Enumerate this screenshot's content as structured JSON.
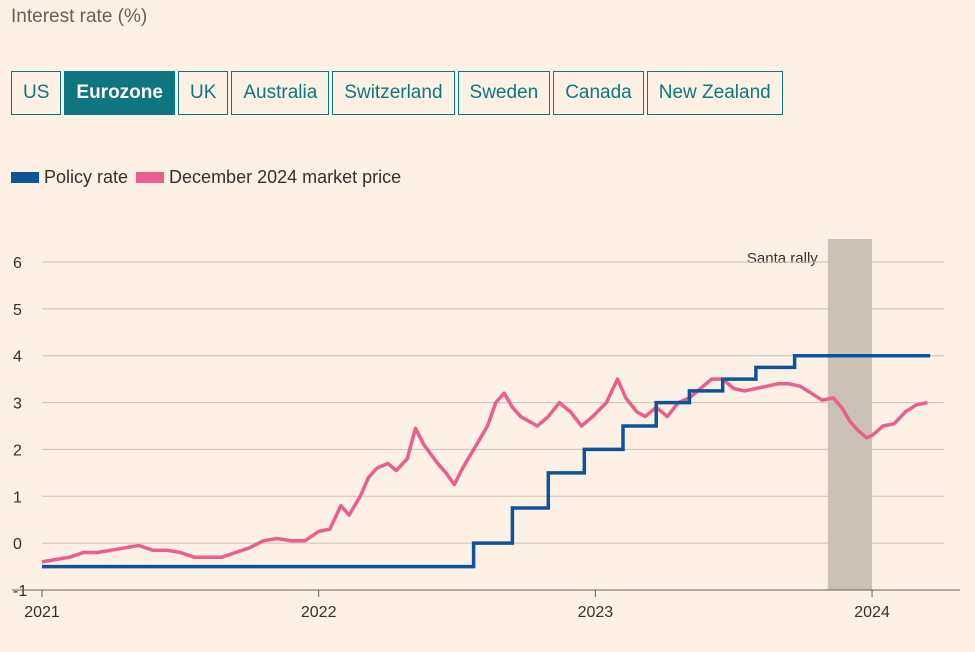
{
  "title": "Interest rate (%)",
  "tabs": [
    {
      "label": "US",
      "active": false
    },
    {
      "label": "Eurozone",
      "active": true
    },
    {
      "label": "UK",
      "active": false
    },
    {
      "label": "Australia",
      "active": false
    },
    {
      "label": "Switzerland",
      "active": false
    },
    {
      "label": "Sweden",
      "active": false
    },
    {
      "label": "Canada",
      "active": false
    },
    {
      "label": "New Zealand",
      "active": false
    }
  ],
  "colors": {
    "policy": "#0f5499",
    "market": "#eb5e8d",
    "accent": "#0d7680",
    "shade": "#ccc1b7",
    "background": "#fdf1e5"
  },
  "chart_data": {
    "type": "line",
    "ylim": [
      -1,
      6
    ],
    "y_ticks": [
      -1,
      0,
      1,
      2,
      3,
      4,
      5,
      6
    ],
    "y_tick_labels": [
      "-1",
      "0",
      "1",
      "2",
      "3",
      "4",
      "5",
      "6"
    ],
    "xlim": [
      2021.0,
      2024.26
    ],
    "x_ticks": [
      2021,
      2022,
      2023,
      2024
    ],
    "x_tick_labels": [
      "2021",
      "2022",
      "2023",
      "2024"
    ],
    "grid": true,
    "legend_position": "top-left",
    "annotation": {
      "label": "Santa rally",
      "x_start": 2023.84,
      "x_end": 2024.0
    },
    "series": [
      {
        "name": "Policy rate",
        "step": true,
        "x": [
          2021.0,
          2022.56,
          2022.7,
          2022.83,
          2022.96,
          2023.1,
          2023.22,
          2023.34,
          2023.46,
          2023.58,
          2023.72,
          2024.21
        ],
        "y": [
          -0.5,
          0.0,
          0.75,
          1.5,
          2.0,
          2.5,
          3.0,
          3.25,
          3.5,
          3.75,
          4.0,
          4.0
        ]
      },
      {
        "name": "December 2024 market price",
        "step": false,
        "x": [
          2021.0,
          2021.05,
          2021.1,
          2021.15,
          2021.2,
          2021.25,
          2021.3,
          2021.35,
          2021.4,
          2021.45,
          2021.5,
          2021.55,
          2021.6,
          2021.65,
          2021.7,
          2021.75,
          2021.8,
          2021.85,
          2021.9,
          2021.95,
          2022.0,
          2022.04,
          2022.08,
          2022.11,
          2022.15,
          2022.18,
          2022.21,
          2022.25,
          2022.28,
          2022.32,
          2022.35,
          2022.38,
          2022.43,
          2022.46,
          2022.49,
          2022.52,
          2022.55,
          2022.58,
          2022.61,
          2022.64,
          2022.67,
          2022.7,
          2022.73,
          2022.76,
          2022.79,
          2022.83,
          2022.87,
          2022.91,
          2022.95,
          2022.99,
          2023.04,
          2023.08,
          2023.11,
          2023.15,
          2023.18,
          2023.22,
          2023.26,
          2023.3,
          2023.34,
          2023.38,
          2023.42,
          2023.46,
          2023.5,
          2023.54,
          2023.58,
          2023.62,
          2023.66,
          2023.7,
          2023.74,
          2023.78,
          2023.82,
          2023.86,
          2023.89,
          2023.92,
          2023.95,
          2023.98,
          2024.0,
          2024.04,
          2024.08,
          2024.12,
          2024.16,
          2024.2
        ],
        "y": [
          -0.4,
          -0.35,
          -0.3,
          -0.2,
          -0.2,
          -0.15,
          -0.1,
          -0.05,
          -0.15,
          -0.15,
          -0.2,
          -0.3,
          -0.3,
          -0.3,
          -0.2,
          -0.1,
          0.05,
          0.1,
          0.05,
          0.05,
          0.25,
          0.3,
          0.8,
          0.6,
          1.0,
          1.4,
          1.6,
          1.7,
          1.55,
          1.8,
          2.45,
          2.1,
          1.7,
          1.5,
          1.25,
          1.6,
          1.9,
          2.2,
          2.5,
          3.0,
          3.2,
          2.9,
          2.7,
          2.6,
          2.5,
          2.7,
          3.0,
          2.8,
          2.5,
          2.7,
          3.0,
          3.5,
          3.1,
          2.8,
          2.7,
          2.9,
          2.7,
          3.0,
          3.1,
          3.3,
          3.5,
          3.5,
          3.3,
          3.25,
          3.3,
          3.35,
          3.4,
          3.4,
          3.35,
          3.2,
          3.05,
          3.1,
          2.9,
          2.6,
          2.4,
          2.25,
          2.3,
          2.5,
          2.55,
          2.8,
          2.95,
          3.0
        ]
      }
    ]
  }
}
